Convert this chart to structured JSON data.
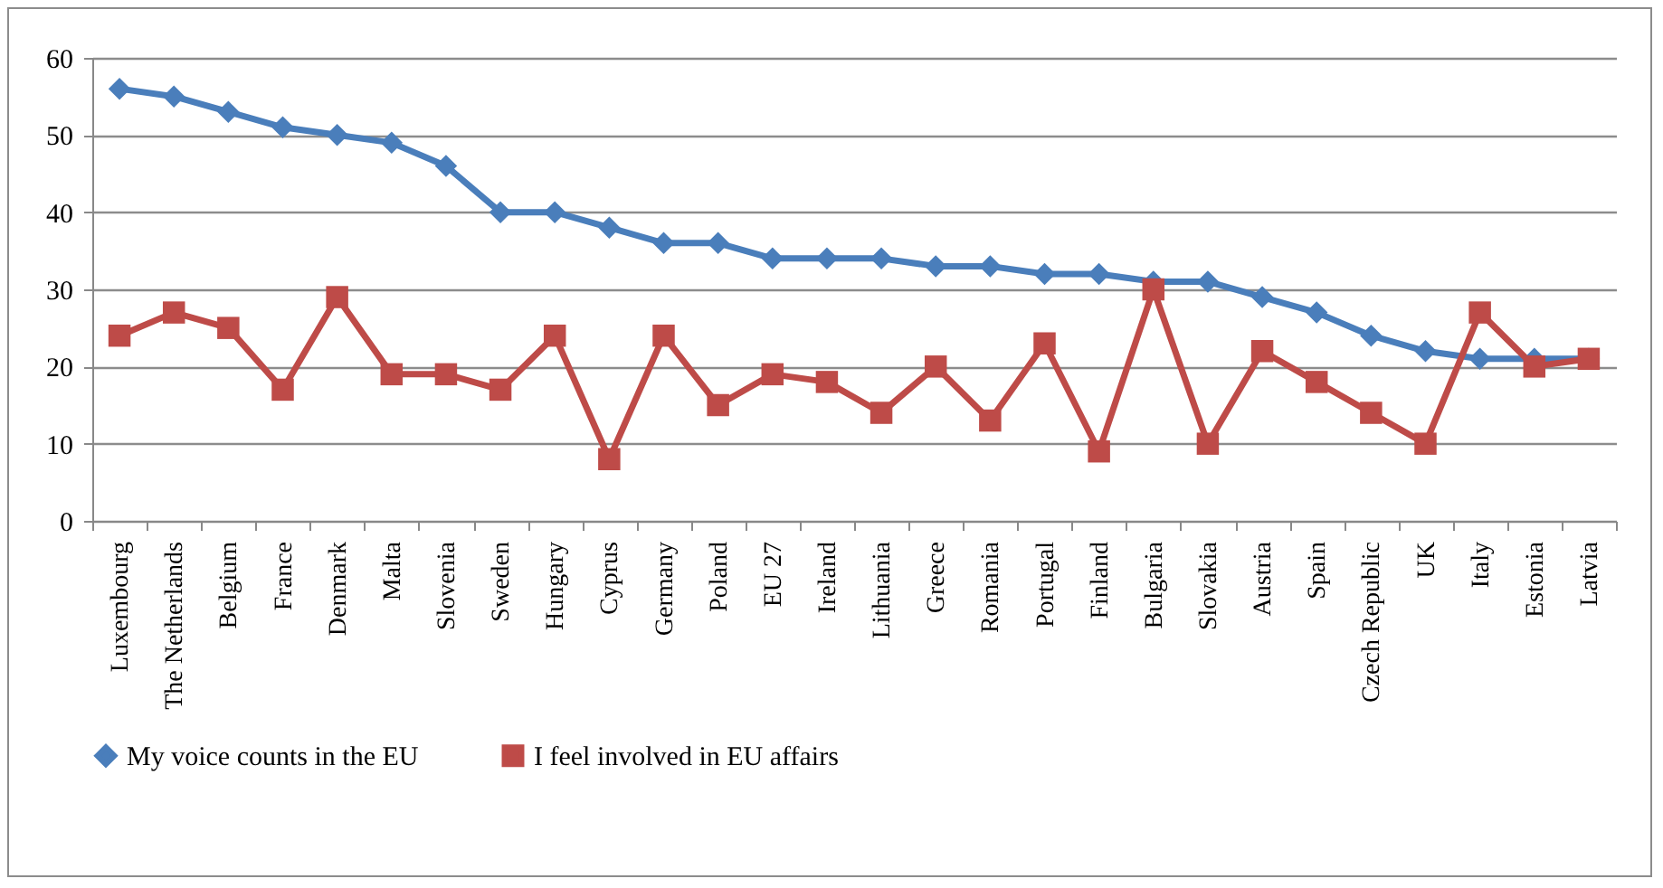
{
  "chart_data": {
    "type": "line",
    "categories": [
      "Luxembourg",
      "The Netherlands",
      "Belgium",
      "France",
      "Denmark",
      "Malta",
      "Slovenia",
      "Sweden",
      "Hungary",
      "Cyprus",
      "Germany",
      "Poland",
      "EU 27",
      "Ireland",
      "Lithuania",
      "Greece",
      "Romania",
      "Portugal",
      "Finland",
      "Bulgaria",
      "Slovakia",
      "Austria",
      "Spain",
      "Czech Republic",
      "UK",
      "Italy",
      "Estonia",
      "Latvia"
    ],
    "series": [
      {
        "name": "My voice counts in the EU",
        "color": "#4a7ebb",
        "marker": "diamond",
        "values": [
          56,
          55,
          53,
          51,
          50,
          49,
          46,
          40,
          40,
          38,
          36,
          36,
          34,
          34,
          34,
          33,
          33,
          32,
          32,
          31,
          31,
          29,
          27,
          24,
          22,
          21,
          21,
          21
        ]
      },
      {
        "name": "I feel involved in EU affairs",
        "color": "#be4b48",
        "marker": "square",
        "values": [
          24,
          27,
          25,
          17,
          29,
          19,
          19,
          17,
          24,
          8,
          24,
          15,
          19,
          18,
          14,
          20,
          13,
          23,
          9,
          30,
          10,
          22,
          18,
          14,
          10,
          27,
          20,
          21
        ]
      }
    ],
    "ylim": [
      0,
      60
    ],
    "yticks": [
      0,
      10,
      20,
      30,
      40,
      50,
      60
    ],
    "grid": "y",
    "legend": "bottom"
  }
}
